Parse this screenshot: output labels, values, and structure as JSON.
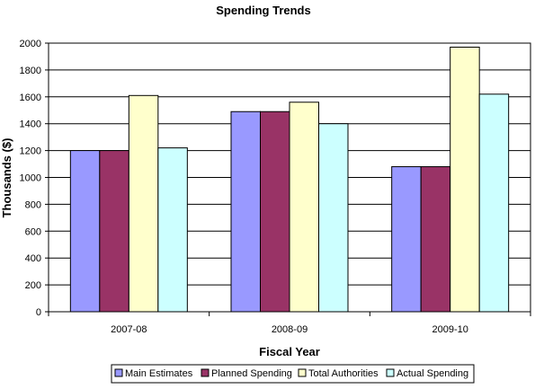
{
  "chart_data": {
    "type": "bar",
    "title": "Spending Trends",
    "xlabel": "Fiscal Year",
    "ylabel": "Thousands ($)",
    "categories": [
      "2007-08",
      "2008-09",
      "2009-10"
    ],
    "ylim": [
      0,
      2000
    ],
    "yticks": [
      0,
      200,
      400,
      600,
      800,
      1000,
      1200,
      1400,
      1600,
      1800,
      2000
    ],
    "grid": true,
    "legend_position": "bottom",
    "series": [
      {
        "name": "Main Estimates",
        "color": "#9999ff",
        "values": [
          1200,
          1490,
          1080
        ]
      },
      {
        "name": "Planned Spending",
        "color": "#993366",
        "values": [
          1200,
          1490,
          1080
        ]
      },
      {
        "name": "Total Authorities",
        "color": "#ffffcc",
        "values": [
          1610,
          1560,
          1970
        ]
      },
      {
        "name": "Actual Spending",
        "color": "#ccffff",
        "values": [
          1220,
          1400,
          1620
        ]
      }
    ]
  }
}
